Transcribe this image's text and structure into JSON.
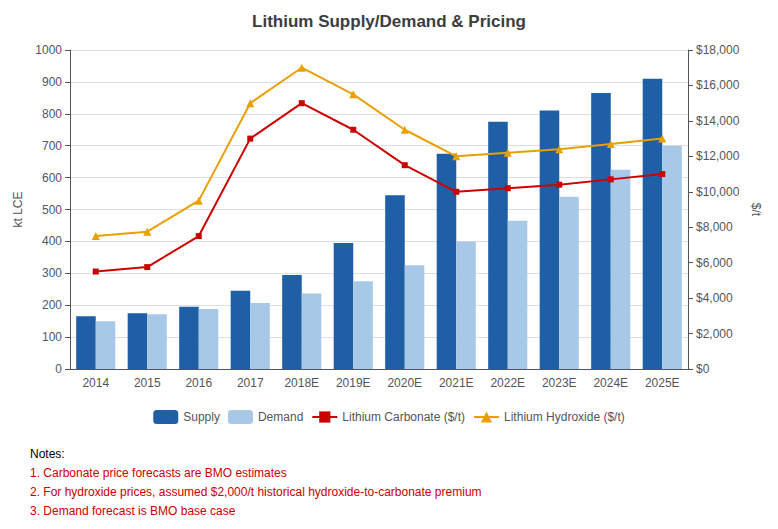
{
  "chart_data": {
    "type": "bar",
    "title": "Lithium Supply/Demand & Pricing",
    "categories": [
      "2014",
      "2015",
      "2016",
      "2017",
      "2018E",
      "2019E",
      "2020E",
      "2021E",
      "2022E",
      "2023E",
      "2024E",
      "2025E"
    ],
    "series": [
      {
        "name": "Supply",
        "type": "bar",
        "color": "#1F5FA6",
        "values": [
          165,
          175,
          195,
          245,
          295,
          395,
          545,
          675,
          775,
          810,
          865,
          910
        ]
      },
      {
        "name": "Demand",
        "type": "bar",
        "color": "#A8C8E8",
        "values": [
          150,
          172,
          188,
          207,
          237,
          275,
          325,
          400,
          465,
          540,
          625,
          700
        ]
      },
      {
        "name": "Lithium Carbonate ($/t)",
        "type": "line",
        "axis": "y2",
        "color": "#CC0000",
        "marker": "square",
        "values": [
          5500,
          5750,
          7500,
          13000,
          15000,
          13500,
          11500,
          10000,
          10200,
          10400,
          10700,
          11000
        ]
      },
      {
        "name": "Lithium Hydroxide ($/t)",
        "type": "line",
        "axis": "y2",
        "color": "#E8A000",
        "marker": "triangle",
        "values": [
          7500,
          7750,
          9500,
          15000,
          17000,
          15500,
          13500,
          12000,
          12200,
          12400,
          12700,
          13000
        ]
      }
    ],
    "ylabel": "kt LCE",
    "y2label": "$/t",
    "ylim": [
      0,
      1000
    ],
    "yticks": [
      0,
      100,
      200,
      300,
      400,
      500,
      600,
      700,
      800,
      900,
      1000
    ],
    "y2lim": [
      0,
      18000
    ],
    "y2ticks": [
      {
        "value": 0,
        "label": "$0"
      },
      {
        "value": 2000,
        "label": "$2,000"
      },
      {
        "value": 4000,
        "label": "$4,000"
      },
      {
        "value": 6000,
        "label": "$6,000"
      },
      {
        "value": 8000,
        "label": "$8,000"
      },
      {
        "value": 10000,
        "label": "$10,000"
      },
      {
        "value": 12000,
        "label": "$12,000"
      },
      {
        "value": 14000,
        "label": "$14,000"
      },
      {
        "value": 16000,
        "label": "$16,000"
      },
      {
        "value": 18000,
        "label": "$18,000"
      }
    ],
    "grid": true,
    "legend": "bottom",
    "annotations": [
      {
        "text": "Notes:",
        "color": "#000000"
      },
      {
        "text": "1. Carbonate price forecasts are BMO estimates",
        "color": "#CC0000"
      },
      {
        "text": "2. For hydroxide prices, assumed $2,000/t historical hydroxide-to-carbonate premium",
        "color": "#CC0000"
      },
      {
        "text": "3. Demand forecast is BMO base case",
        "color": "#CC0000"
      }
    ]
  }
}
